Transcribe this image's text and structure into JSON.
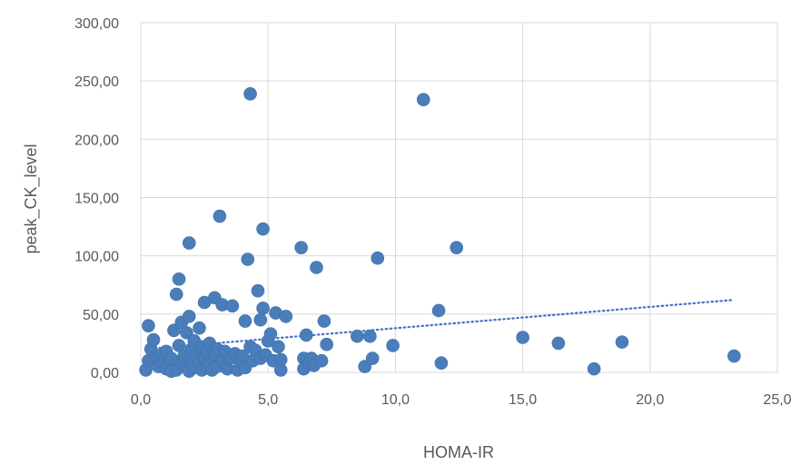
{
  "chart_data": {
    "type": "scatter",
    "title": "",
    "xlabel": "HOMA-IR",
    "ylabel": "peak_CK_level",
    "xlim": [
      0,
      25
    ],
    "ylim": [
      0,
      300
    ],
    "x_ticks": [
      "0,0",
      "5,0",
      "10,0",
      "15,0",
      "20,0",
      "25,0"
    ],
    "y_ticks": [
      "0,00",
      "50,00",
      "100,00",
      "150,00",
      "200,00",
      "250,00",
      "300,00"
    ],
    "grid": true,
    "trendline": {
      "type": "linear",
      "x_start": 0.2,
      "x_end": 23.2,
      "y_start": 20,
      "y_end": 62
    },
    "colors": {
      "points": "#4a7ebb",
      "trendline": "#4472c4",
      "grid": "#d9d9d9",
      "text": "#595959"
    },
    "series": [
      {
        "points": [
          [
            0.2,
            2
          ],
          [
            0.3,
            40
          ],
          [
            0.3,
            10
          ],
          [
            0.4,
            20
          ],
          [
            0.5,
            28
          ],
          [
            0.6,
            12
          ],
          [
            0.7,
            5
          ],
          [
            0.8,
            15
          ],
          [
            0.9,
            8
          ],
          [
            1.0,
            3
          ],
          [
            1.0,
            18
          ],
          [
            1.1,
            6
          ],
          [
            1.2,
            1
          ],
          [
            1.2,
            12
          ],
          [
            1.3,
            36
          ],
          [
            1.4,
            67
          ],
          [
            1.4,
            2
          ],
          [
            1.5,
            80
          ],
          [
            1.5,
            23
          ],
          [
            1.6,
            43
          ],
          [
            1.6,
            8
          ],
          [
            1.7,
            14
          ],
          [
            1.8,
            34
          ],
          [
            1.8,
            5
          ],
          [
            1.9,
            111
          ],
          [
            1.9,
            48
          ],
          [
            1.9,
            1
          ],
          [
            2.0,
            20
          ],
          [
            2.0,
            10
          ],
          [
            2.1,
            27
          ],
          [
            2.1,
            4
          ],
          [
            2.2,
            15
          ],
          [
            2.3,
            38
          ],
          [
            2.3,
            8
          ],
          [
            2.4,
            22
          ],
          [
            2.4,
            2
          ],
          [
            2.5,
            12
          ],
          [
            2.5,
            60
          ],
          [
            2.6,
            18
          ],
          [
            2.6,
            5
          ],
          [
            2.7,
            25
          ],
          [
            2.7,
            9
          ],
          [
            2.8,
            2
          ],
          [
            2.9,
            64
          ],
          [
            2.9,
            14
          ],
          [
            3.0,
            20
          ],
          [
            3.0,
            5
          ],
          [
            3.1,
            134
          ],
          [
            3.2,
            58
          ],
          [
            3.2,
            10
          ],
          [
            3.3,
            18
          ],
          [
            3.4,
            3
          ],
          [
            3.5,
            12
          ],
          [
            3.6,
            57
          ],
          [
            3.7,
            16
          ],
          [
            3.8,
            2
          ],
          [
            3.9,
            9
          ],
          [
            4.0,
            14
          ],
          [
            4.1,
            44
          ],
          [
            4.1,
            4
          ],
          [
            4.2,
            97
          ],
          [
            4.3,
            239
          ],
          [
            4.3,
            22
          ],
          [
            4.4,
            10
          ],
          [
            4.5,
            19
          ],
          [
            4.6,
            70
          ],
          [
            4.7,
            12
          ],
          [
            4.7,
            45
          ],
          [
            4.8,
            123
          ],
          [
            4.8,
            55
          ],
          [
            4.9,
            15
          ],
          [
            5.0,
            27
          ],
          [
            5.1,
            33
          ],
          [
            5.2,
            10
          ],
          [
            5.3,
            51
          ],
          [
            5.4,
            22
          ],
          [
            5.5,
            2
          ],
          [
            5.5,
            11
          ],
          [
            5.7,
            48
          ],
          [
            6.3,
            107
          ],
          [
            6.4,
            12
          ],
          [
            6.4,
            3
          ],
          [
            6.5,
            32
          ],
          [
            6.6,
            8
          ],
          [
            6.7,
            12
          ],
          [
            6.8,
            6
          ],
          [
            6.9,
            90
          ],
          [
            7.1,
            10
          ],
          [
            7.2,
            44
          ],
          [
            7.3,
            24
          ],
          [
            8.5,
            31
          ],
          [
            8.8,
            5
          ],
          [
            9.0,
            31
          ],
          [
            9.1,
            12
          ],
          [
            9.3,
            98
          ],
          [
            9.9,
            23
          ],
          [
            11.1,
            234
          ],
          [
            11.7,
            53
          ],
          [
            11.8,
            8
          ],
          [
            12.4,
            107
          ],
          [
            15.0,
            30
          ],
          [
            16.4,
            25
          ],
          [
            17.8,
            3
          ],
          [
            18.9,
            26
          ],
          [
            23.3,
            14
          ]
        ]
      }
    ]
  }
}
